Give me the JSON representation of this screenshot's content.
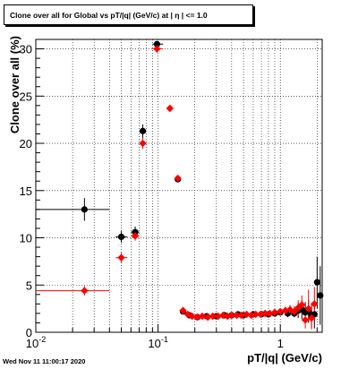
{
  "title": "Clone  over all for Global vs pT/|q| (GeV/c) at |  η | <= 1.0",
  "timestamp": "Wed Nov 11 11:00:17 2020",
  "chart_data": {
    "type": "scatter",
    "xlabel": "pT/|q| (GeV/c)",
    "ylabel": "Clone  over all (%)",
    "xscale": "log",
    "xlim": [
      0.01,
      2.2
    ],
    "ylim": [
      0,
      31
    ],
    "x_ticks": [
      {
        "value": 0.01,
        "label": "10",
        "sup": "-2"
      },
      {
        "value": 0.1,
        "label": "10",
        "sup": "-1"
      },
      {
        "value": 1,
        "label": "1",
        "sup": ""
      }
    ],
    "y_ticks": [
      0,
      5,
      10,
      15,
      20,
      25,
      30
    ],
    "grid": true,
    "series": [
      {
        "color": "#000000",
        "marker": "circle",
        "points": [
          {
            "x": 0.025,
            "y": 13.0,
            "xlo": 0.01,
            "xhi": 0.04,
            "ylo": 11.8,
            "yhi": 14.2
          },
          {
            "x": 0.05,
            "y": 10.1,
            "xlo": 0.045,
            "xhi": 0.056,
            "ylo": 9.5,
            "yhi": 10.7
          },
          {
            "x": 0.065,
            "y": 10.6,
            "xlo": 0.06,
            "xhi": 0.07,
            "ylo": 10.0,
            "yhi": 11.2
          },
          {
            "x": 0.075,
            "y": 21.3,
            "xlo": 0.071,
            "xhi": 0.08,
            "ylo": 20.6,
            "yhi": 22.0
          },
          {
            "x": 0.098,
            "y": 30.5,
            "xlo": 0.09,
            "xhi": 0.11,
            "ylo": 30.2,
            "yhi": 30.8
          },
          {
            "x": 0.145,
            "y": 16.2,
            "xlo": 0.14,
            "xhi": 0.15,
            "ylo": 15.9,
            "yhi": 16.5
          },
          {
            "x": 0.16,
            "y": 2.2,
            "xlo": 0.155,
            "xhi": 0.165,
            "ylo": 1.9,
            "yhi": 2.5
          },
          {
            "x": 0.18,
            "y": 1.8,
            "xlo": 0.17,
            "xhi": 0.19,
            "ylo": 1.5,
            "yhi": 2.1
          },
          {
            "x": 0.21,
            "y": 1.6,
            "xlo": 0.2,
            "xhi": 0.22,
            "ylo": 1.3,
            "yhi": 1.9
          },
          {
            "x": 0.25,
            "y": 1.7,
            "xlo": 0.24,
            "xhi": 0.26,
            "ylo": 1.4,
            "yhi": 2.0
          },
          {
            "x": 0.3,
            "y": 1.7,
            "xlo": 0.29,
            "xhi": 0.31,
            "ylo": 1.4,
            "yhi": 2.0
          },
          {
            "x": 0.35,
            "y": 1.8,
            "xlo": 0.34,
            "xhi": 0.36,
            "ylo": 1.5,
            "yhi": 2.1
          },
          {
            "x": 0.4,
            "y": 1.8,
            "xlo": 0.39,
            "xhi": 0.41,
            "ylo": 1.5,
            "yhi": 2.1
          },
          {
            "x": 0.45,
            "y": 1.9,
            "xlo": 0.44,
            "xhi": 0.46,
            "ylo": 1.6,
            "yhi": 2.2
          },
          {
            "x": 0.5,
            "y": 1.8,
            "xlo": 0.49,
            "xhi": 0.51,
            "ylo": 1.5,
            "yhi": 2.1
          },
          {
            "x": 0.6,
            "y": 1.9,
            "xlo": 0.58,
            "xhi": 0.62,
            "ylo": 1.6,
            "yhi": 2.2
          },
          {
            "x": 0.7,
            "y": 1.9,
            "xlo": 0.68,
            "xhi": 0.72,
            "ylo": 1.6,
            "yhi": 2.2
          },
          {
            "x": 0.8,
            "y": 1.9,
            "xlo": 0.78,
            "xhi": 0.82,
            "ylo": 1.6,
            "yhi": 2.2
          },
          {
            "x": 0.9,
            "y": 2.0,
            "xlo": 0.88,
            "xhi": 0.92,
            "ylo": 1.7,
            "yhi": 2.3
          },
          {
            "x": 1.0,
            "y": 2.1,
            "xlo": 0.98,
            "xhi": 1.02,
            "ylo": 1.8,
            "yhi": 2.4
          },
          {
            "x": 1.15,
            "y": 2.0,
            "xlo": 1.12,
            "xhi": 1.18,
            "ylo": 1.6,
            "yhi": 2.4
          },
          {
            "x": 1.3,
            "y": 2.0,
            "xlo": 1.27,
            "xhi": 1.33,
            "ylo": 1.6,
            "yhi": 2.4
          },
          {
            "x": 1.4,
            "y": 2.3,
            "xlo": 1.37,
            "xhi": 1.43,
            "ylo": 1.5,
            "yhi": 3.1
          },
          {
            "x": 1.5,
            "y": 2.4,
            "xlo": 1.47,
            "xhi": 1.53,
            "ylo": 1.4,
            "yhi": 3.4
          },
          {
            "x": 1.6,
            "y": 2.1,
            "xlo": 1.57,
            "xhi": 1.63,
            "ylo": 1.0,
            "yhi": 3.2
          },
          {
            "x": 1.7,
            "y": 2.2,
            "xlo": 1.67,
            "xhi": 1.73,
            "ylo": 1.0,
            "yhi": 3.4
          },
          {
            "x": 1.8,
            "y": 1.8,
            "xlo": 1.77,
            "xhi": 1.83,
            "ylo": 0.5,
            "yhi": 3.1
          },
          {
            "x": 1.9,
            "y": 1.9,
            "xlo": 1.87,
            "xhi": 1.93,
            "ylo": 0.4,
            "yhi": 3.4
          },
          {
            "x": 2.0,
            "y": 5.3,
            "xlo": 1.97,
            "xhi": 2.03,
            "ylo": 2.5,
            "yhi": 8.0
          },
          {
            "x": 2.12,
            "y": 3.9,
            "xlo": 2.09,
            "xhi": 2.15,
            "ylo": 0.8,
            "yhi": 7.0
          }
        ]
      },
      {
        "color": "#ff0000",
        "marker": "diamond",
        "points": [
          {
            "x": 0.025,
            "y": 4.4,
            "xlo": 0.01,
            "xhi": 0.04,
            "ylo": 3.9,
            "yhi": 4.9
          },
          {
            "x": 0.05,
            "y": 7.9,
            "xlo": 0.045,
            "xhi": 0.056,
            "ylo": 7.4,
            "yhi": 8.4
          },
          {
            "x": 0.065,
            "y": 10.2,
            "xlo": 0.06,
            "xhi": 0.07,
            "ylo": 9.7,
            "yhi": 10.7
          },
          {
            "x": 0.075,
            "y": 20.0,
            "xlo": 0.071,
            "xhi": 0.08,
            "ylo": 19.4,
            "yhi": 20.6
          },
          {
            "x": 0.098,
            "y": 30.0,
            "xlo": 0.09,
            "xhi": 0.11,
            "ylo": 29.6,
            "yhi": 30.4
          },
          {
            "x": 0.125,
            "y": 23.7,
            "xlo": 0.12,
            "xhi": 0.132,
            "ylo": 23.4,
            "yhi": 24.0
          },
          {
            "x": 0.145,
            "y": 16.3,
            "xlo": 0.14,
            "xhi": 0.15,
            "ylo": 16.0,
            "yhi": 16.6
          },
          {
            "x": 0.16,
            "y": 2.3,
            "xlo": 0.155,
            "xhi": 0.165,
            "ylo": 2.0,
            "yhi": 2.6
          },
          {
            "x": 0.175,
            "y": 1.9,
            "xlo": 0.17,
            "xhi": 0.18,
            "ylo": 1.6,
            "yhi": 2.2
          },
          {
            "x": 0.19,
            "y": 1.7,
            "xlo": 0.185,
            "xhi": 0.195,
            "ylo": 1.4,
            "yhi": 2.0
          },
          {
            "x": 0.21,
            "y": 1.6,
            "xlo": 0.205,
            "xhi": 0.215,
            "ylo": 1.3,
            "yhi": 1.9
          },
          {
            "x": 0.23,
            "y": 1.7,
            "xlo": 0.225,
            "xhi": 0.235,
            "ylo": 1.4,
            "yhi": 2.0
          },
          {
            "x": 0.255,
            "y": 1.6,
            "xlo": 0.25,
            "xhi": 0.26,
            "ylo": 1.3,
            "yhi": 1.9
          },
          {
            "x": 0.28,
            "y": 1.7,
            "xlo": 0.275,
            "xhi": 0.285,
            "ylo": 1.4,
            "yhi": 2.0
          },
          {
            "x": 0.31,
            "y": 1.7,
            "xlo": 0.305,
            "xhi": 0.315,
            "ylo": 1.4,
            "yhi": 2.0
          },
          {
            "x": 0.34,
            "y": 1.8,
            "xlo": 0.335,
            "xhi": 0.345,
            "ylo": 1.5,
            "yhi": 2.1
          },
          {
            "x": 0.37,
            "y": 1.7,
            "xlo": 0.365,
            "xhi": 0.375,
            "ylo": 1.4,
            "yhi": 2.0
          },
          {
            "x": 0.4,
            "y": 1.8,
            "xlo": 0.395,
            "xhi": 0.405,
            "ylo": 1.5,
            "yhi": 2.1
          },
          {
            "x": 0.44,
            "y": 1.8,
            "xlo": 0.435,
            "xhi": 0.445,
            "ylo": 1.5,
            "yhi": 2.1
          },
          {
            "x": 0.48,
            "y": 1.8,
            "xlo": 0.475,
            "xhi": 0.485,
            "ylo": 1.5,
            "yhi": 2.1
          },
          {
            "x": 0.53,
            "y": 1.9,
            "xlo": 0.52,
            "xhi": 0.54,
            "ylo": 1.6,
            "yhi": 2.2
          },
          {
            "x": 0.58,
            "y": 1.8,
            "xlo": 0.57,
            "xhi": 0.59,
            "ylo": 1.5,
            "yhi": 2.1
          },
          {
            "x": 0.63,
            "y": 1.9,
            "xlo": 0.62,
            "xhi": 0.64,
            "ylo": 1.6,
            "yhi": 2.2
          },
          {
            "x": 0.69,
            "y": 1.9,
            "xlo": 0.68,
            "xhi": 0.7,
            "ylo": 1.6,
            "yhi": 2.2
          },
          {
            "x": 0.75,
            "y": 2.0,
            "xlo": 0.74,
            "xhi": 0.76,
            "ylo": 1.7,
            "yhi": 2.3
          },
          {
            "x": 0.82,
            "y": 2.0,
            "xlo": 0.81,
            "xhi": 0.83,
            "ylo": 1.7,
            "yhi": 2.3
          },
          {
            "x": 0.9,
            "y": 2.1,
            "xlo": 0.89,
            "xhi": 0.91,
            "ylo": 1.8,
            "yhi": 2.4
          },
          {
            "x": 1.0,
            "y": 2.2,
            "xlo": 0.98,
            "xhi": 1.02,
            "ylo": 1.9,
            "yhi": 2.5
          },
          {
            "x": 1.1,
            "y": 2.3,
            "xlo": 1.07,
            "xhi": 1.13,
            "ylo": 1.9,
            "yhi": 2.7
          },
          {
            "x": 1.2,
            "y": 2.4,
            "xlo": 1.17,
            "xhi": 1.23,
            "ylo": 1.9,
            "yhi": 2.9
          },
          {
            "x": 1.3,
            "y": 2.2,
            "xlo": 1.27,
            "xhi": 1.33,
            "ylo": 1.6,
            "yhi": 2.8
          },
          {
            "x": 1.4,
            "y": 2.6,
            "xlo": 1.37,
            "xhi": 1.43,
            "ylo": 1.8,
            "yhi": 3.4
          },
          {
            "x": 1.5,
            "y": 2.9,
            "xlo": 1.47,
            "xhi": 1.53,
            "ylo": 1.9,
            "yhi": 3.9
          },
          {
            "x": 1.6,
            "y": 1.3,
            "xlo": 1.57,
            "xhi": 1.63,
            "ylo": 0.4,
            "yhi": 2.4
          },
          {
            "x": 1.7,
            "y": 2.5,
            "xlo": 1.67,
            "xhi": 1.73,
            "ylo": 1.2,
            "yhi": 4.5
          },
          {
            "x": 1.8,
            "y": 1.5,
            "xlo": 1.77,
            "xhi": 1.83,
            "ylo": 0.3,
            "yhi": 2.9
          },
          {
            "x": 1.9,
            "y": 3.0,
            "xlo": 1.87,
            "xhi": 1.93,
            "ylo": 1.2,
            "yhi": 4.8
          }
        ]
      }
    ]
  }
}
